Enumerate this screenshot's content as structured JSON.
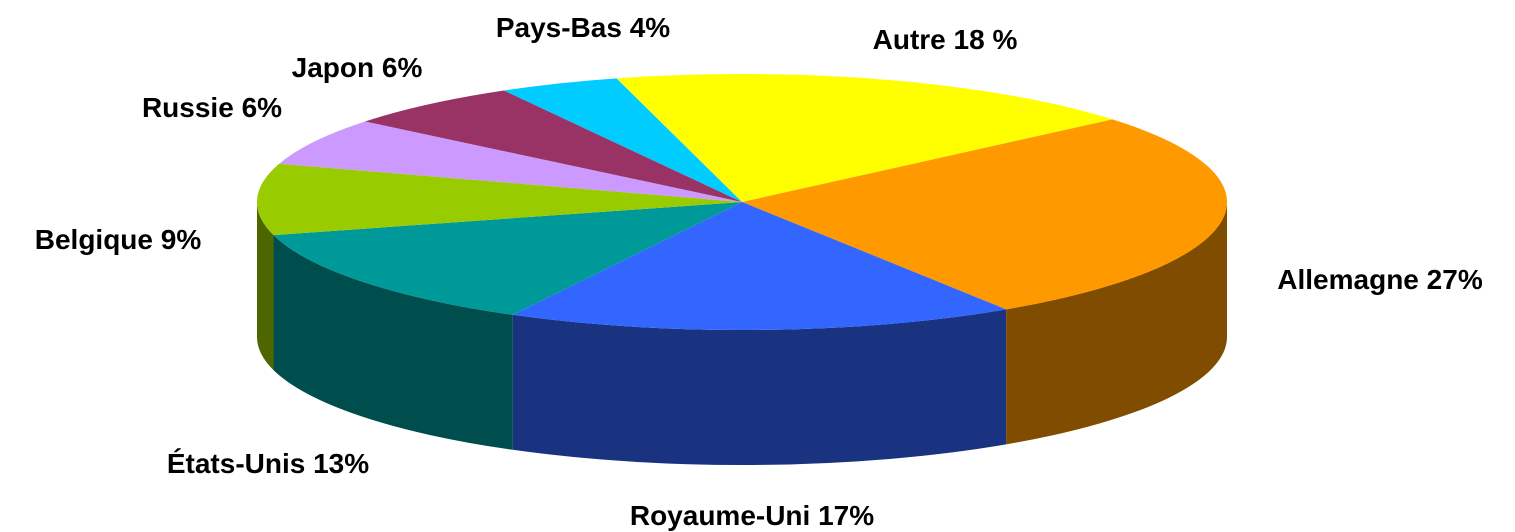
{
  "chart_data": {
    "type": "pie",
    "categories": [
      "Autre",
      "Allemagne",
      "Royaume-Uni",
      "États-Unis",
      "Belgique",
      "Russie",
      "Japon",
      "Pays-Bas"
    ],
    "values": [
      18,
      27,
      17,
      13,
      9,
      6,
      6,
      4
    ],
    "value_labels": [
      "18 %",
      "27%",
      "17%",
      "13%",
      "9%",
      "6%",
      "6%",
      "4%"
    ],
    "colors": [
      "#ffff00",
      "#ff9900",
      "#3366ff",
      "#009999",
      "#99cc00",
      "#cc99ff",
      "#993366",
      "#00ccff"
    ]
  }
}
